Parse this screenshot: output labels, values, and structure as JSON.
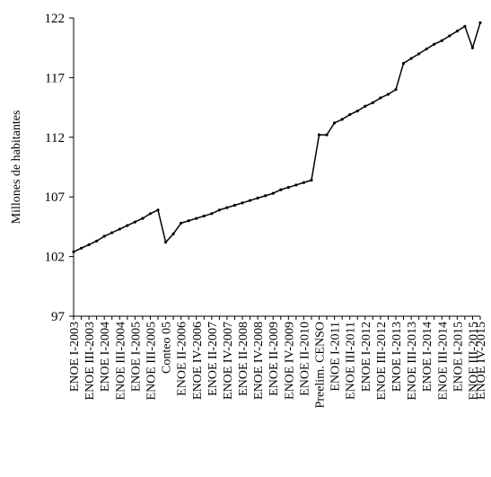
{
  "chart_data": {
    "type": "line",
    "y_label": "Millones de habitantes",
    "categories": [
      "ENOE I-2003",
      null,
      "ENOE III-2003",
      null,
      "ENOE I-2004",
      null,
      "ENOE III-2004",
      null,
      "ENOE I-2005",
      null,
      "ENOE III-2005",
      null,
      "Conteo 05",
      null,
      "ENOE II-2006",
      null,
      "ENOE IV-2006",
      null,
      "ENOE II-2007",
      null,
      "ENOE IV-2007",
      null,
      "ENOE II-2008",
      null,
      "ENOE IV-2008",
      null,
      "ENOE II-2009",
      null,
      "ENOE IV-2009",
      null,
      "ENOE II-2010",
      null,
      "Preelim. CENSO",
      null,
      "ENOE I-2011",
      null,
      "ENOE III-2011",
      null,
      "ENOE I-2012",
      null,
      "ENOE III-2012",
      null,
      "ENOE I-2013",
      null,
      "ENOE III-2013",
      null,
      "ENOE I-2014",
      null,
      "ENOE III-2014",
      null,
      "ENOE I-2015",
      null,
      "ENOE III-2015",
      "ENOE IV-2015"
    ],
    "values": [
      102.4,
      102.7,
      103.0,
      103.3,
      103.7,
      104.0,
      104.3,
      104.6,
      104.9,
      105.2,
      105.6,
      105.9,
      103.2,
      103.9,
      104.8,
      105.0,
      105.2,
      105.4,
      105.6,
      105.9,
      106.1,
      106.3,
      106.5,
      106.7,
      106.9,
      107.1,
      107.3,
      107.6,
      107.8,
      108.0,
      108.2,
      108.4,
      112.2,
      112.2,
      113.2,
      113.5,
      113.9,
      114.2,
      114.6,
      114.9,
      115.3,
      115.6,
      116.0,
      118.2,
      118.6,
      119.0,
      119.4,
      119.8,
      120.1,
      120.5,
      120.9,
      121.3,
      119.5,
      121.6
    ],
    "color": "#000000",
    "ylim": [
      97,
      122
    ],
    "yticks": [
      97,
      102,
      107,
      112,
      117,
      122
    ],
    "grid": false
  }
}
